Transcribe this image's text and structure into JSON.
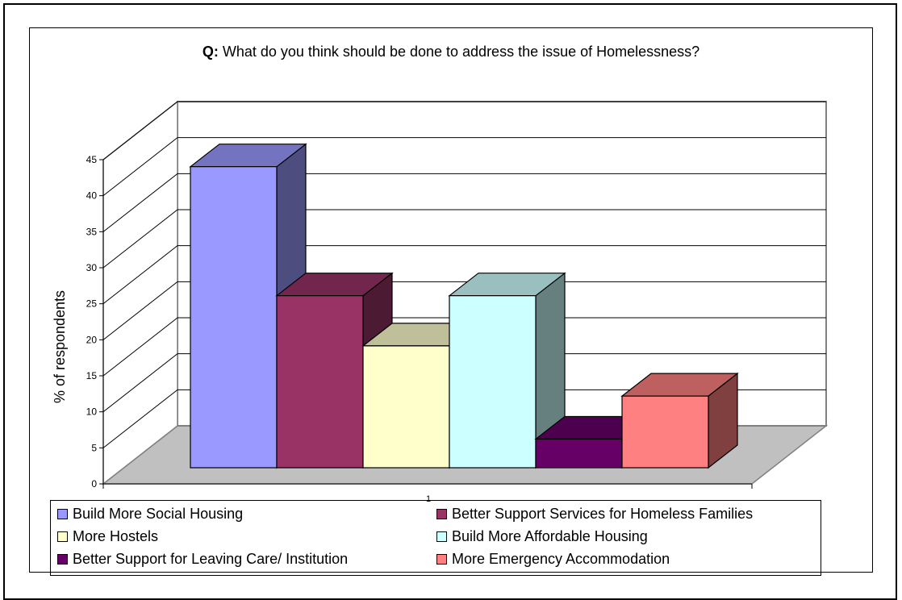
{
  "chart_data": {
    "type": "bar",
    "title_prefix": "Q:",
    "title": "What do you think should be done to address the issue of Homelessness?",
    "ylabel": "% of respondents",
    "xlabel": "",
    "ylim": [
      0,
      45
    ],
    "yticks": [
      "0",
      "5",
      "10",
      "15",
      "20",
      "25",
      "30",
      "35",
      "40",
      "45"
    ],
    "categories": [
      "1"
    ],
    "series": [
      {
        "name": "Build More Social Housing",
        "values": [
          42
        ],
        "color": "#9999ff"
      },
      {
        "name": "Better Support Services for Homeless Families",
        "values": [
          24
        ],
        "color": "#993366"
      },
      {
        "name": "More Hostels",
        "values": [
          17
        ],
        "color": "#ffffcc"
      },
      {
        "name": "Build More Affordable Housing",
        "values": [
          24
        ],
        "color": "#ccffff"
      },
      {
        "name": "Better Support for Leaving Care/ Institution",
        "values": [
          4
        ],
        "color": "#660066"
      },
      {
        "name": "More Emergency Accommodation",
        "values": [
          10
        ],
        "color": "#ff8080"
      }
    ],
    "grid": true,
    "legend_position": "bottom",
    "style": "3d"
  }
}
